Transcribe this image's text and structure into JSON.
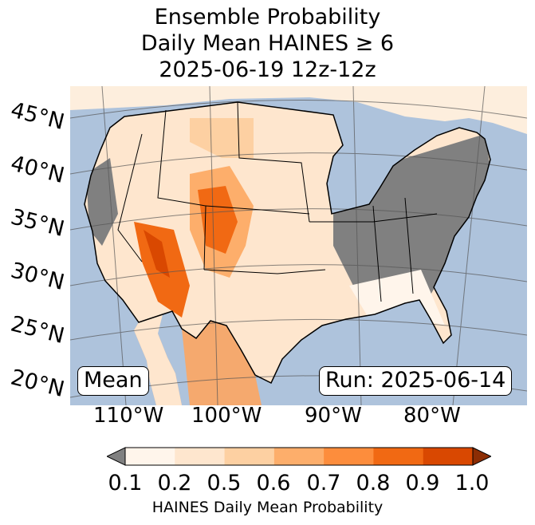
{
  "title": {
    "line1": "Ensemble Probability",
    "line2": "Daily Mean HAINES ≥ 6",
    "line3": "2025-06-19 12z-12z"
  },
  "map": {
    "projection": "lambert-conformal",
    "region": "CONUS",
    "ocean_color": "#aec3dc",
    "no_data_color": "#808080",
    "state_borders": true,
    "graticule": true
  },
  "lat_labels": [
    "45°N",
    "40°N",
    "35°N",
    "30°N",
    "25°N",
    "20°N"
  ],
  "lon_labels": [
    "110°W",
    "100°W",
    "90°W",
    "80°W"
  ],
  "stat_box": "Mean",
  "run_box": "Run: 2025-06-14",
  "colorbar": {
    "ticks": [
      "0.1",
      "0.2",
      "0.5",
      "0.6",
      "0.7",
      "0.8",
      "0.9",
      "1.0"
    ],
    "colors": [
      "#fff5eb",
      "#fee6ce",
      "#fdd0a2",
      "#fdae6b",
      "#fd8d3c",
      "#f16913",
      "#d94801",
      "#8c2d04"
    ],
    "under_color": "#808080",
    "label": "HAINES Daily Mean Probability"
  }
}
